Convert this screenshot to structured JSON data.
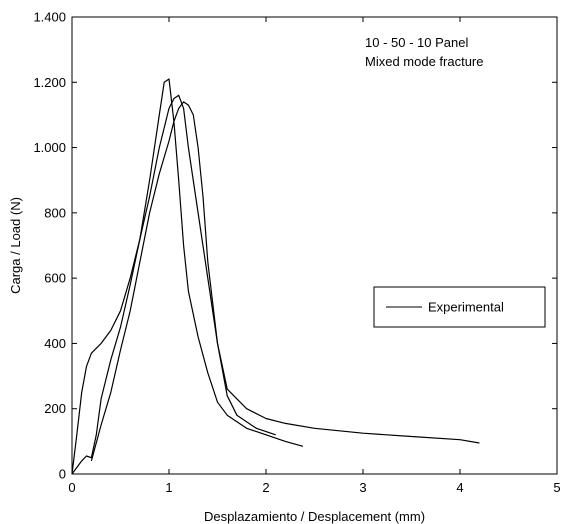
{
  "chart_data": {
    "type": "line",
    "xlabel": "Desplazamiento / Desplacement (mm)",
    "ylabel": "Carga / Load (N)",
    "xlim": [
      0,
      5
    ],
    "ylim": [
      0,
      1400
    ],
    "x_ticks": [
      0,
      1,
      2,
      3,
      4,
      5
    ],
    "x_tick_labels": [
      "0",
      "1",
      "2",
      "3",
      "4",
      "5"
    ],
    "y_ticks": [
      0,
      200,
      400,
      600,
      800,
      1000,
      1200,
      1400
    ],
    "y_tick_labels": [
      "0",
      "200",
      "400",
      "600",
      "800",
      "1.000",
      "1.200",
      "1.400"
    ],
    "grid": false,
    "annotations": [
      "10 - 50 - 10 Panel",
      "Mixed mode fracture"
    ],
    "legend": {
      "position": "right",
      "entries": [
        "Experimental"
      ]
    },
    "series": [
      {
        "name": "Experimental",
        "color": "#000000",
        "x": [
          0,
          0.05,
          0.1,
          0.15,
          0.2,
          0.3,
          0.4,
          0.5,
          0.6,
          0.7,
          0.8,
          0.9,
          0.95,
          1.0,
          1.05,
          1.1,
          1.15,
          1.2,
          1.3,
          1.4,
          1.5,
          1.6,
          1.7,
          1.8,
          2.0,
          2.2,
          2.38
        ],
        "y": [
          0,
          120,
          250,
          330,
          370,
          400,
          440,
          500,
          600,
          720,
          900,
          1100,
          1200,
          1210,
          1080,
          900,
          700,
          560,
          420,
          310,
          220,
          180,
          160,
          140,
          120,
          100,
          85
        ]
      },
      {
        "name": "",
        "color": "#000000",
        "x": [
          0,
          0.1,
          0.15,
          0.2,
          0.25,
          0.3,
          0.4,
          0.5,
          0.6,
          0.7,
          0.8,
          0.9,
          1.0,
          1.05,
          1.1,
          1.15,
          1.2,
          1.3,
          1.4,
          1.5,
          1.6,
          1.8,
          2.0,
          2.2,
          2.5,
          3.0,
          3.5,
          4.0,
          4.2
        ],
        "y": [
          0,
          40,
          55,
          50,
          120,
          230,
          350,
          450,
          580,
          720,
          850,
          1000,
          1120,
          1150,
          1160,
          1120,
          1000,
          800,
          600,
          400,
          260,
          200,
          170,
          155,
          140,
          125,
          115,
          105,
          95
        ]
      },
      {
        "name": "",
        "color": "#000000",
        "x": [
          0.2,
          0.3,
          0.4,
          0.5,
          0.6,
          0.7,
          0.8,
          0.9,
          1.0,
          1.05,
          1.1,
          1.15,
          1.2,
          1.25,
          1.3,
          1.35,
          1.4,
          1.5,
          1.6,
          1.7,
          1.9,
          2.1
        ],
        "y": [
          40,
          150,
          250,
          380,
          500,
          650,
          800,
          920,
          1020,
          1080,
          1120,
          1140,
          1130,
          1100,
          1000,
          850,
          650,
          400,
          240,
          180,
          140,
          120
        ]
      }
    ]
  }
}
